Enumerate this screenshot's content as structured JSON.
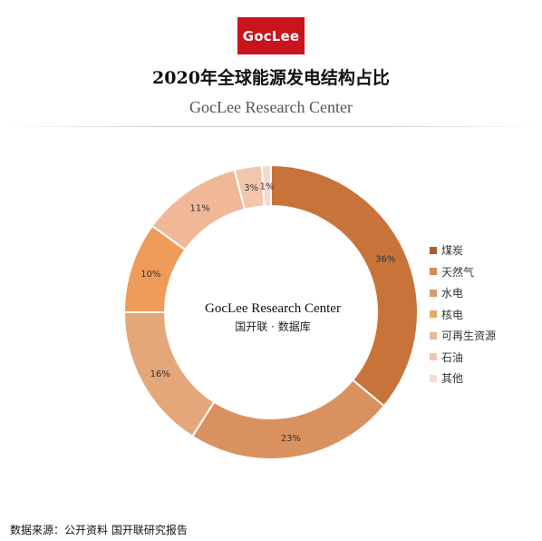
{
  "logo": {
    "text": "GocLee"
  },
  "header": {
    "title": "2020年全球能源发电结构占比",
    "subtitle": "GocLee Research Center"
  },
  "center": {
    "line1": "GocLee Research Center",
    "line2": "国开联 · 数据库"
  },
  "footer": {
    "source": "数据来源：公开资料 国开联研究报告"
  },
  "colors": {
    "logo_bg": "#c8141d",
    "slice_borders": "#ffffff"
  },
  "chart_data": {
    "type": "pie",
    "variant": "donut",
    "title": "2020年全球能源发电结构占比",
    "legend_position": "right",
    "categories": [
      "煤炭",
      "天然气",
      "水电",
      "核电",
      "可再生资源",
      "石油",
      "其他"
    ],
    "values": [
      36,
      23,
      16,
      10,
      11,
      3,
      1
    ],
    "labels": [
      "36%",
      "23%",
      "16%",
      "10%",
      "11%",
      "3%",
      "1%"
    ],
    "colors": [
      "#c8733a",
      "#d9925f",
      "#e4a779",
      "#ef9c5a",
      "#f1b898",
      "#f3c5ad",
      "#f6d9cb"
    ],
    "legend_colors": [
      "#a85d2c",
      "#d08a58",
      "#da9b6b",
      "#e9a95f",
      "#eeb596",
      "#f2c4ae",
      "#f6dcd0"
    ]
  }
}
